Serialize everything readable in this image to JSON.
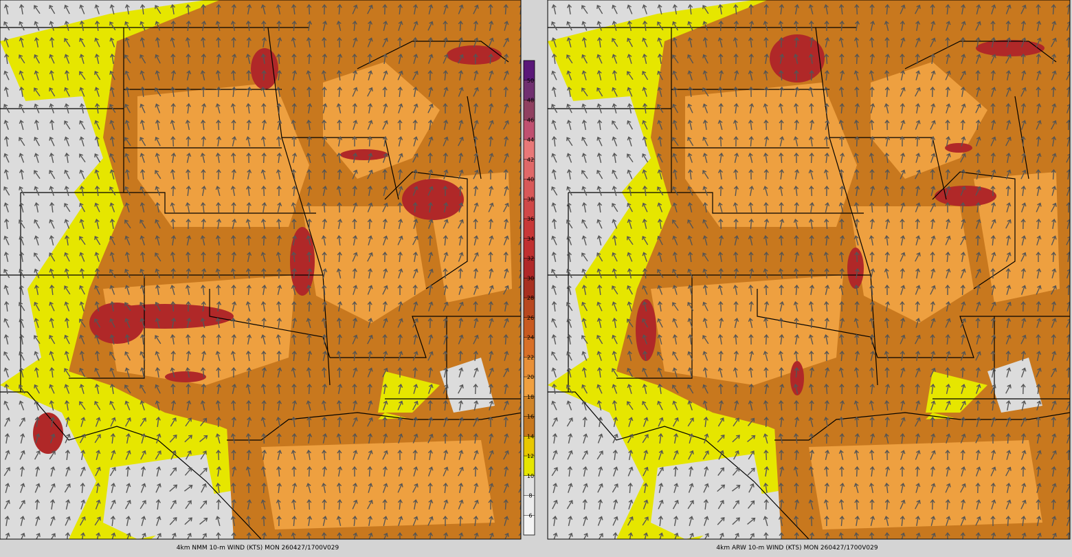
{
  "panels": [
    {
      "caption": "4km NMM 10-m WIND (KTS) MON 260427/1700V029"
    },
    {
      "caption": "4km ARW 10-m WIND (KTS) MON 260427/1700V029"
    }
  ],
  "colorbar": {
    "ticks": [
      6,
      8,
      10,
      12,
      14,
      16,
      18,
      20,
      22,
      24,
      26,
      28,
      30,
      32,
      34,
      36,
      38,
      40,
      42,
      44,
      46,
      48,
      50
    ],
    "colors": [
      "#f4f4f4",
      "#ececec",
      "#e2e2e2",
      "#e6e600",
      "#e8c800",
      "#c8781e",
      "#d08428",
      "#f0a040",
      "#e89038",
      "#d87028",
      "#c85a20",
      "#b84820",
      "#a83020",
      "#b02828",
      "#c03030",
      "#c83838",
      "#d04848",
      "#d85858",
      "#e06868",
      "#e87878",
      "#c05070",
      "#904060",
      "#703070",
      "#5a1878"
    ]
  }
}
